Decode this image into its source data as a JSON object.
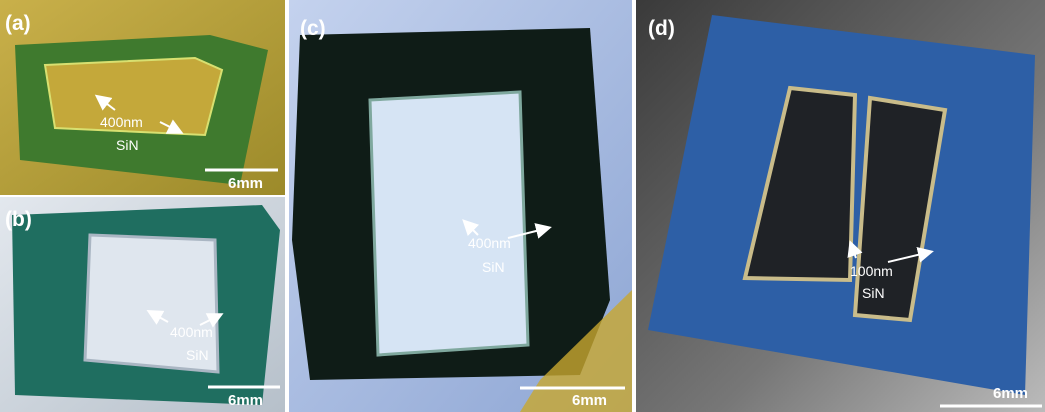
{
  "panels": [
    {
      "label": "(a)",
      "annotation": {
        "thickness": "400nm",
        "material": "SiN"
      },
      "scale_bar": "6mm"
    },
    {
      "label": "(b)",
      "annotation": {
        "thickness": "400nm",
        "material": "SiN"
      },
      "scale_bar": "6mm"
    },
    {
      "label": "(c)",
      "annotation": {
        "thickness": "400nm",
        "material": "SiN"
      },
      "scale_bar": "6mm"
    },
    {
      "label": "(d)",
      "annotation": {
        "thickness": "100nm",
        "material": "SiN"
      },
      "scale_bar": "6mm"
    }
  ]
}
